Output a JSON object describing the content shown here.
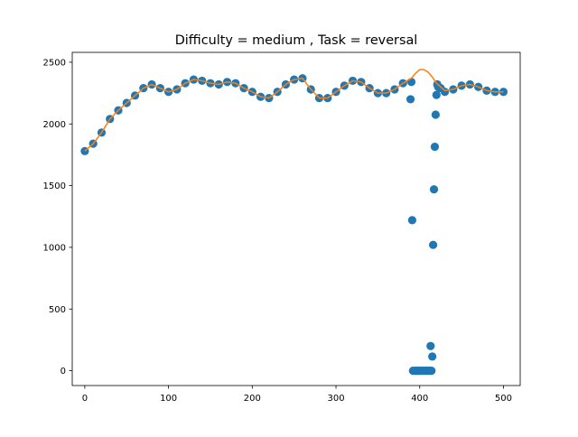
{
  "chart_data": {
    "type": "scatter",
    "title": "Difficulty = medium , Task = reversal",
    "xlabel": "",
    "ylabel": "",
    "xlim": [
      -15,
      520
    ],
    "ylim": [
      -120,
      2580
    ],
    "xticks": [
      0,
      100,
      200,
      300,
      400,
      500
    ],
    "yticks": [
      0,
      500,
      1000,
      1500,
      2000,
      2500
    ],
    "grid": false,
    "colors": {
      "scatter": "#1f77b4",
      "line": "#ff7f0e",
      "axes": "#000000"
    },
    "series": [
      {
        "kind": "line",
        "x": [
          0,
          10,
          20,
          30,
          40,
          50,
          60,
          70,
          80,
          90,
          100,
          110,
          120,
          130,
          140,
          150,
          160,
          170,
          180,
          190,
          200,
          210,
          220,
          230,
          240,
          250,
          260,
          270,
          280,
          290,
          300,
          310,
          320,
          330,
          340,
          350,
          360,
          370,
          380,
          390,
          395,
          400,
          405,
          410,
          415,
          420,
          425,
          430,
          440,
          450,
          460,
          470,
          480,
          490,
          500
        ],
        "y": [
          1780,
          1840,
          1930,
          2040,
          2110,
          2170,
          2230,
          2290,
          2320,
          2290,
          2260,
          2280,
          2330,
          2360,
          2350,
          2330,
          2320,
          2340,
          2330,
          2290,
          2260,
          2220,
          2210,
          2260,
          2320,
          2360,
          2370,
          2280,
          2210,
          2210,
          2260,
          2310,
          2350,
          2340,
          2290,
          2250,
          2250,
          2280,
          2330,
          2370,
          2410,
          2440,
          2440,
          2420,
          2380,
          2330,
          2300,
          2270,
          2280,
          2310,
          2320,
          2300,
          2270,
          2260,
          2260
        ]
      },
      {
        "kind": "scatter",
        "x": [
          0,
          10,
          20,
          30,
          40,
          50,
          60,
          70,
          80,
          90,
          100,
          110,
          120,
          130,
          140,
          150,
          160,
          170,
          180,
          190,
          200,
          210,
          220,
          230,
          240,
          250,
          260,
          270,
          280,
          290,
          300,
          310,
          320,
          330,
          340,
          350,
          360,
          370,
          380,
          390,
          389,
          391,
          392,
          394,
          396,
          398,
          400,
          402,
          404,
          406,
          408,
          410,
          412,
          414,
          413,
          415,
          416,
          417,
          418,
          419,
          420,
          421,
          422,
          425,
          430,
          440,
          450,
          460,
          470,
          480,
          490,
          500
        ],
        "y": [
          1780,
          1840,
          1930,
          2040,
          2110,
          2170,
          2230,
          2290,
          2320,
          2290,
          2260,
          2280,
          2330,
          2360,
          2350,
          2330,
          2320,
          2340,
          2330,
          2290,
          2260,
          2220,
          2210,
          2260,
          2320,
          2360,
          2370,
          2280,
          2210,
          2210,
          2260,
          2310,
          2350,
          2340,
          2290,
          2250,
          2250,
          2280,
          2330,
          2340,
          2200,
          1220,
          0,
          0,
          0,
          0,
          0,
          0,
          0,
          0,
          0,
          0,
          0,
          0,
          200,
          115,
          1020,
          1470,
          1815,
          2075,
          2235,
          2320,
          2300,
          2290,
          2260,
          2280,
          2310,
          2320,
          2300,
          2270,
          2260,
          2260
        ]
      }
    ]
  }
}
